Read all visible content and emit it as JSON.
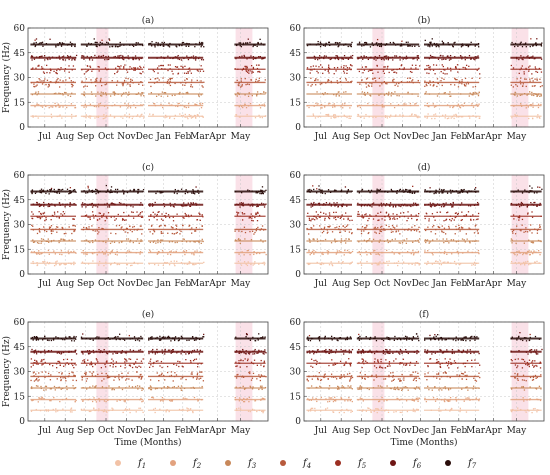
{
  "figure": {
    "legend": [
      {
        "label": "f",
        "sub": "1",
        "color": "#f2c2a6"
      },
      {
        "label": "f",
        "sub": "2",
        "color": "#e2a27e"
      },
      {
        "label": "f",
        "sub": "3",
        "color": "#c8885a"
      },
      {
        "label": "f",
        "sub": "4",
        "color": "#b75a3c"
      },
      {
        "label": "f",
        "sub": "5",
        "color": "#9c2f22"
      },
      {
        "label": "f",
        "sub": "6",
        "color": "#6e1614"
      },
      {
        "label": "f",
        "sub": "7",
        "color": "#2a0d0a"
      }
    ],
    "background_band_color": "#f6c9d6",
    "xlabel": "Time (Months)",
    "ylabel": "Frequency (Hz)"
  },
  "chart_data": [
    {
      "type": "scatter",
      "title": "(a)",
      "xlabel": "",
      "ylabel": "Frequency (Hz)",
      "ylim": [
        0,
        60
      ],
      "yticks": [
        0,
        15,
        30,
        45,
        60
      ],
      "categories": [
        "Jul",
        "Aug",
        "Sep",
        "Oct",
        "Nov",
        "Dec",
        "Jan",
        "Feb",
        "Mar",
        "Apr",
        "May"
      ],
      "series": [
        {
          "values": [
            6.5,
            6.5,
            6.5,
            6.5,
            6.5,
            6.5,
            6.5,
            6.5,
            6.5,
            null,
            6.5
          ]
        },
        {
          "values": [
            13,
            13,
            13,
            13,
            13,
            13,
            13,
            13,
            13,
            null,
            13
          ]
        },
        {
          "values": [
            20,
            20,
            20,
            20,
            20,
            20,
            20,
            20,
            20,
            null,
            20
          ]
        },
        {
          "values": [
            27,
            27,
            27,
            27,
            27,
            27,
            27,
            27,
            27,
            null,
            27
          ]
        },
        {
          "values": [
            35,
            35,
            35,
            35,
            35,
            35,
            35,
            35,
            35,
            null,
            35
          ]
        },
        {
          "values": [
            42,
            42,
            42,
            42,
            42,
            42,
            42,
            42,
            42,
            null,
            42
          ]
        },
        {
          "values": [
            50,
            50,
            50,
            50,
            50,
            50,
            50,
            50,
            50,
            null,
            50
          ]
        }
      ]
    },
    {
      "type": "scatter",
      "title": "(b)",
      "xlabel": "",
      "ylabel": "",
      "ylim": [
        0,
        60
      ],
      "yticks": [
        0,
        15,
        30,
        45,
        60
      ],
      "categories": [
        "Jul",
        "Aug",
        "Sep",
        "Oct",
        "Nov",
        "Dec",
        "Jan",
        "Feb",
        "Mar",
        "Apr",
        "May"
      ],
      "series": [
        {
          "values": [
            6.5,
            6.5,
            6.5,
            6.5,
            6.5,
            6.5,
            6.5,
            6.5,
            6.5,
            null,
            6.5
          ]
        },
        {
          "values": [
            13,
            13,
            13,
            13,
            13,
            13,
            13,
            13,
            13,
            null,
            13
          ]
        },
        {
          "values": [
            20,
            20,
            20,
            20,
            20,
            20,
            20,
            20,
            20,
            null,
            20
          ]
        },
        {
          "values": [
            27,
            27,
            27,
            27,
            27,
            27,
            27,
            27,
            27,
            null,
            27
          ]
        },
        {
          "values": [
            35,
            35,
            35,
            35,
            35,
            35,
            35,
            35,
            35,
            null,
            35
          ]
        },
        {
          "values": [
            42,
            42,
            42,
            42,
            42,
            42,
            42,
            42,
            42,
            null,
            42
          ]
        },
        {
          "values": [
            50,
            50,
            50,
            50,
            50,
            50,
            50,
            50,
            50,
            null,
            50
          ]
        }
      ]
    },
    {
      "type": "scatter",
      "title": "(c)",
      "xlabel": "",
      "ylabel": "Frequency (Hz)",
      "ylim": [
        0,
        60
      ],
      "yticks": [
        0,
        15,
        30,
        45,
        60
      ],
      "categories": [
        "Jul",
        "Aug",
        "Sep",
        "Oct",
        "Nov",
        "Dec",
        "Jan",
        "Feb",
        "Mar",
        "Apr",
        "May"
      ],
      "series": [
        {
          "values": [
            6.5,
            6.5,
            6.5,
            6.5,
            6.5,
            6.5,
            6.5,
            6.5,
            6.5,
            null,
            6.5
          ]
        },
        {
          "values": [
            13,
            13,
            13,
            13,
            13,
            13,
            13,
            13,
            13,
            null,
            13
          ]
        },
        {
          "values": [
            20,
            20,
            20,
            20,
            20,
            20,
            20,
            20,
            20,
            null,
            20
          ]
        },
        {
          "values": [
            27,
            27,
            27,
            27,
            27,
            27,
            27,
            27,
            27,
            null,
            27
          ]
        },
        {
          "values": [
            35,
            35,
            35,
            35,
            35,
            35,
            35,
            35,
            35,
            null,
            35
          ]
        },
        {
          "values": [
            42,
            42,
            42,
            42,
            42,
            42,
            42,
            42,
            42,
            null,
            42
          ]
        },
        {
          "values": [
            50,
            50,
            50,
            50,
            50,
            50,
            50,
            50,
            50,
            null,
            50
          ]
        }
      ]
    },
    {
      "type": "scatter",
      "title": "(d)",
      "xlabel": "",
      "ylabel": "",
      "ylim": [
        0,
        60
      ],
      "yticks": [
        0,
        15,
        30,
        45,
        60
      ],
      "categories": [
        "Jul",
        "Aug",
        "Sep",
        "Oct",
        "Nov",
        "Dec",
        "Jan",
        "Feb",
        "Mar",
        "Apr",
        "May"
      ],
      "series": [
        {
          "values": [
            6.5,
            6.5,
            6.5,
            6.5,
            6.5,
            6.5,
            6.5,
            6.5,
            6.5,
            null,
            6.5
          ]
        },
        {
          "values": [
            13,
            13,
            13,
            13,
            13,
            13,
            13,
            13,
            13,
            null,
            13
          ]
        },
        {
          "values": [
            20,
            20,
            20,
            20,
            20,
            20,
            20,
            20,
            20,
            null,
            20
          ]
        },
        {
          "values": [
            27,
            27,
            27,
            27,
            27,
            27,
            27,
            27,
            27,
            null,
            27
          ]
        },
        {
          "values": [
            35,
            35,
            35,
            35,
            35,
            35,
            35,
            35,
            35,
            null,
            35
          ]
        },
        {
          "values": [
            42,
            42,
            42,
            42,
            42,
            42,
            42,
            42,
            42,
            null,
            42
          ]
        },
        {
          "values": [
            50,
            50,
            50,
            50,
            50,
            50,
            50,
            50,
            50,
            null,
            50
          ]
        }
      ]
    },
    {
      "type": "scatter",
      "title": "(e)",
      "xlabel": "Time (Months)",
      "ylabel": "Frequency (Hz)",
      "ylim": [
        0,
        60
      ],
      "yticks": [
        0,
        15,
        30,
        45,
        60
      ],
      "categories": [
        "Jul",
        "Aug",
        "Sep",
        "Oct",
        "Nov",
        "Dec",
        "Jan",
        "Feb",
        "Mar",
        "Apr",
        "May"
      ],
      "series": [
        {
          "values": [
            6.5,
            6.5,
            6.5,
            6.5,
            6.5,
            6.5,
            6.5,
            6.5,
            6.5,
            null,
            6.5
          ]
        },
        {
          "values": [
            13,
            13,
            13,
            13,
            13,
            13,
            13,
            13,
            13,
            null,
            13
          ]
        },
        {
          "values": [
            20,
            20,
            20,
            20,
            20,
            20,
            20,
            20,
            20,
            null,
            20
          ]
        },
        {
          "values": [
            27,
            27,
            27,
            27,
            27,
            27,
            27,
            27,
            27,
            null,
            27
          ]
        },
        {
          "values": [
            35,
            35,
            35,
            35,
            35,
            35,
            35,
            35,
            35,
            null,
            35
          ]
        },
        {
          "values": [
            42,
            42,
            42,
            42,
            42,
            42,
            42,
            42,
            42,
            null,
            42
          ]
        },
        {
          "values": [
            50,
            50,
            50,
            50,
            50,
            50,
            50,
            50,
            50,
            null,
            50
          ]
        }
      ]
    },
    {
      "type": "scatter",
      "title": "(f)",
      "xlabel": "Time (Months)",
      "ylabel": "",
      "ylim": [
        0,
        60
      ],
      "yticks": [
        0,
        15,
        30,
        45,
        60
      ],
      "categories": [
        "Jul",
        "Aug",
        "Sep",
        "Oct",
        "Nov",
        "Dec",
        "Jan",
        "Feb",
        "Mar",
        "Apr",
        "May"
      ],
      "series": [
        {
          "values": [
            6.5,
            6.5,
            6.5,
            6.5,
            6.5,
            6.5,
            6.5,
            6.5,
            6.5,
            null,
            6.5
          ]
        },
        {
          "values": [
            13,
            13,
            13,
            13,
            13,
            13,
            13,
            13,
            13,
            null,
            13
          ]
        },
        {
          "values": [
            20,
            20,
            20,
            20,
            20,
            20,
            20,
            20,
            20,
            null,
            20
          ]
        },
        {
          "values": [
            27,
            27,
            27,
            27,
            27,
            27,
            27,
            27,
            27,
            null,
            27
          ]
        },
        {
          "values": [
            35,
            35,
            35,
            35,
            35,
            35,
            35,
            35,
            35,
            null,
            35
          ]
        },
        {
          "values": [
            42,
            42,
            42,
            42,
            42,
            42,
            42,
            42,
            42,
            null,
            42
          ]
        },
        {
          "values": [
            50,
            50,
            50,
            50,
            50,
            50,
            50,
            50,
            50,
            null,
            50
          ]
        }
      ]
    }
  ]
}
